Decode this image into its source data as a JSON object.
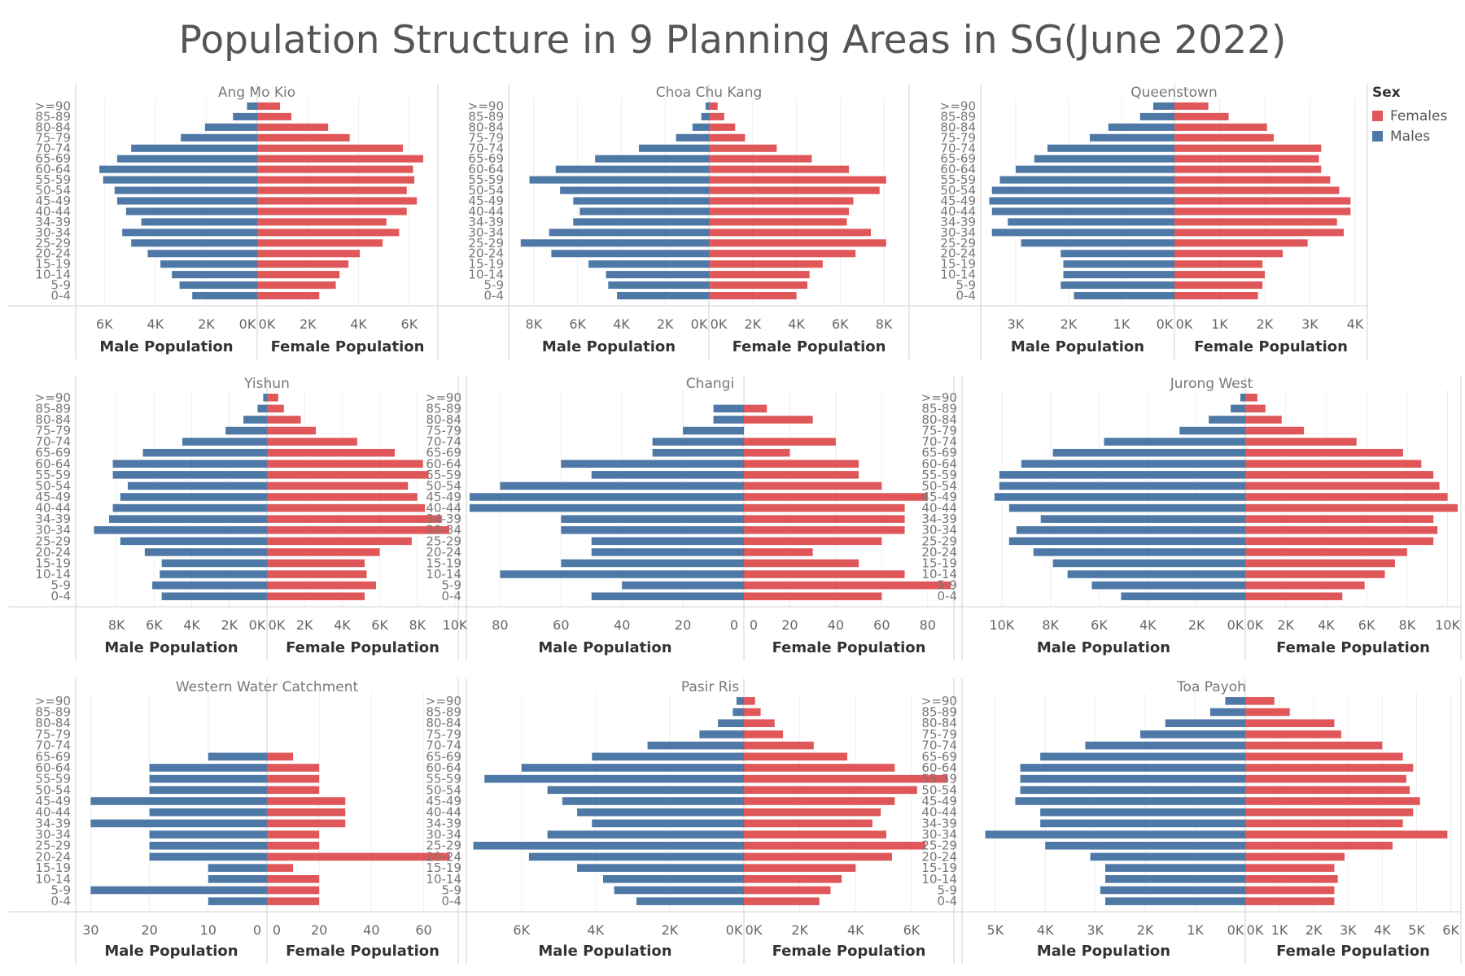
{
  "title": "Population Structure in 9 Planning Areas in SG(June 2022)",
  "legend": {
    "title": "Sex",
    "items": [
      {
        "label": "Females",
        "color": "#e05759"
      },
      {
        "label": "Males",
        "color": "#4e79a7"
      }
    ]
  },
  "chart_data": [
    {
      "type": "bar",
      "orientation": "horizontal-pyramid",
      "panel": "Ang Mo Kio",
      "xlabel_left": "Male Population",
      "xlabel_right": "Female Population",
      "categories": [
        "0-4",
        "5-9",
        "10-14",
        "15-19",
        "20-24",
        "25-29",
        "30-34",
        "34-39",
        "40-44",
        "45-49",
        "50-54",
        "55-59",
        "60-64",
        "65-69",
        "70-74",
        "75-79",
        "80-84",
        "85-89",
        ">=90"
      ],
      "male_ticks": [
        "6K",
        "4K",
        "2K",
        "0K"
      ],
      "female_ticks": [
        "0K",
        "2K",
        "4K",
        "6K"
      ],
      "male_xlim": [
        7000,
        0
      ],
      "female_xlim": [
        0,
        7000
      ],
      "series": [
        {
          "name": "Males",
          "values": [
            2550,
            3050,
            3350,
            3800,
            4300,
            4950,
            5300,
            4550,
            5150,
            5500,
            5600,
            6050,
            6200,
            5500,
            4950,
            3000,
            2050,
            950,
            400
          ]
        },
        {
          "name": "Females",
          "values": [
            2450,
            3100,
            3250,
            3600,
            4050,
            4950,
            5600,
            5100,
            5900,
            6300,
            5900,
            6200,
            6150,
            6550,
            5750,
            3650,
            2800,
            1350,
            900
          ]
        }
      ]
    },
    {
      "type": "bar",
      "orientation": "horizontal-pyramid",
      "panel": "Choa Chu Kang",
      "xlabel_left": "Male Population",
      "xlabel_right": "Female Population",
      "categories": [
        "0-4",
        "5-9",
        "10-14",
        "15-19",
        "20-24",
        "25-29",
        "30-34",
        "34-39",
        "40-44",
        "45-49",
        "50-54",
        "55-59",
        "60-64",
        "65-69",
        "70-74",
        "75-79",
        "80-84",
        "85-89",
        ">=90"
      ],
      "male_ticks": [
        "8K",
        "6K",
        "4K",
        "2K",
        "0K"
      ],
      "female_ticks": [
        "0K",
        "2K",
        "4K",
        "6K",
        "8K"
      ],
      "male_xlim": [
        9000,
        0
      ],
      "female_xlim": [
        0,
        9000
      ],
      "series": [
        {
          "name": "Males",
          "values": [
            4200,
            4600,
            4700,
            5500,
            7200,
            8600,
            7300,
            6200,
            5900,
            6200,
            6800,
            8200,
            7000,
            5200,
            3200,
            1500,
            750,
            350,
            150
          ]
        },
        {
          "name": "Females",
          "values": [
            4000,
            4500,
            4600,
            5200,
            6700,
            8100,
            7400,
            6300,
            6400,
            6600,
            7800,
            8100,
            6400,
            4700,
            3100,
            1650,
            1200,
            700,
            400
          ]
        }
      ]
    },
    {
      "type": "bar",
      "orientation": "horizontal-pyramid",
      "panel": "Queenstown",
      "xlabel_left": "Male Population",
      "xlabel_right": "Female Population",
      "categories": [
        "0-4",
        "5-9",
        "10-14",
        "15-19",
        "20-24",
        "25-29",
        "30-34",
        "34-39",
        "40-44",
        "45-49",
        "50-54",
        "55-59",
        "60-64",
        "65-69",
        "70-74",
        "75-79",
        "80-84",
        "85-89",
        ">=90"
      ],
      "male_ticks": [
        "3K",
        "2K",
        "1K",
        "0K"
      ],
      "female_ticks": [
        "0K",
        "1K",
        "2K",
        "3K",
        "4K"
      ],
      "male_xlim": [
        3600,
        0
      ],
      "female_xlim": [
        0,
        4200
      ],
      "series": [
        {
          "name": "Males",
          "values": [
            1900,
            2150,
            2100,
            2100,
            2150,
            2900,
            3450,
            3150,
            3450,
            3500,
            3450,
            3300,
            3000,
            2650,
            2400,
            1600,
            1250,
            650,
            400
          ]
        },
        {
          "name": "Females",
          "values": [
            1850,
            1950,
            2000,
            1950,
            2400,
            2950,
            3750,
            3600,
            3900,
            3900,
            3650,
            3450,
            3250,
            3200,
            3250,
            2200,
            2050,
            1200,
            750
          ]
        }
      ]
    },
    {
      "type": "bar",
      "orientation": "horizontal-pyramid",
      "panel": "Yishun",
      "xlabel_left": "Male Population",
      "xlabel_right": "Female Population",
      "categories": [
        "0-4",
        "5-9",
        "10-14",
        "15-19",
        "20-24",
        "25-29",
        "30-34",
        "34-39",
        "40-44",
        "45-49",
        "50-54",
        "55-59",
        "60-64",
        "65-69",
        "70-74",
        "75-79",
        "80-84",
        "85-89",
        ">=90"
      ],
      "male_ticks": [
        "8K",
        "6K",
        "4K",
        "2K",
        "0K"
      ],
      "female_ticks": [
        "0K",
        "2K",
        "4K",
        "6K",
        "8K",
        "10K"
      ],
      "male_xlim": [
        10000,
        0
      ],
      "female_xlim": [
        0,
        10000
      ],
      "series": [
        {
          "name": "Males",
          "values": [
            5600,
            6100,
            5700,
            5600,
            6500,
            7800,
            9200,
            8400,
            8200,
            7800,
            7400,
            8200,
            8200,
            6600,
            4500,
            2200,
            1250,
            500,
            200
          ]
        },
        {
          "name": "Females",
          "values": [
            5200,
            5800,
            5300,
            5200,
            6000,
            7700,
            9700,
            9300,
            8400,
            8000,
            7500,
            8600,
            8300,
            6800,
            4800,
            2600,
            1800,
            900,
            600
          ]
        }
      ]
    },
    {
      "type": "bar",
      "orientation": "horizontal-pyramid",
      "panel": "Changi",
      "xlabel_left": "Male Population",
      "xlabel_right": "Female Population",
      "categories": [
        "0-4",
        "5-9",
        "10-14",
        "15-19",
        "20-24",
        "25-29",
        "30-34",
        "34-39",
        "40-44",
        "45-49",
        "50-54",
        "55-59",
        "60-64",
        "65-69",
        "70-74",
        "75-79",
        "80-84",
        "85-89",
        ">=90"
      ],
      "male_ticks": [
        "80",
        "60",
        "40",
        "20",
        "0"
      ],
      "female_ticks": [
        "0",
        "20",
        "40",
        "60",
        "80"
      ],
      "male_xlim": [
        90,
        0
      ],
      "female_xlim": [
        0,
        90
      ],
      "series": [
        {
          "name": "Males",
          "values": [
            50,
            40,
            80,
            60,
            50,
            50,
            60,
            60,
            90,
            90,
            80,
            50,
            60,
            30,
            30,
            20,
            10,
            10,
            0
          ]
        },
        {
          "name": "Females",
          "values": [
            60,
            90,
            70,
            50,
            30,
            60,
            70,
            70,
            70,
            80,
            60,
            50,
            50,
            20,
            40,
            0,
            30,
            10,
            0
          ]
        }
      ]
    },
    {
      "type": "bar",
      "orientation": "horizontal-pyramid",
      "panel": "Jurong West",
      "xlabel_left": "Male Population",
      "xlabel_right": "Female Population",
      "categories": [
        "0-4",
        "5-9",
        "10-14",
        "15-19",
        "20-24",
        "25-29",
        "30-34",
        "34-39",
        "40-44",
        "45-49",
        "50-54",
        "55-59",
        "60-64",
        "65-69",
        "70-74",
        "75-79",
        "80-84",
        "85-89",
        ">=90"
      ],
      "male_ticks": [
        "10K",
        "8K",
        "6K",
        "4K",
        "2K",
        "0K"
      ],
      "female_ticks": [
        "0K",
        "2K",
        "4K",
        "6K",
        "8K",
        "10K"
      ],
      "male_xlim": [
        11500,
        0
      ],
      "female_xlim": [
        0,
        10500
      ],
      "series": [
        {
          "name": "Males",
          "values": [
            5100,
            6300,
            7300,
            7900,
            8700,
            9700,
            9400,
            8400,
            9700,
            10300,
            10100,
            10100,
            9200,
            7900,
            5800,
            2700,
            1500,
            600,
            200
          ]
        },
        {
          "name": "Females",
          "values": [
            4800,
            5900,
            6900,
            7400,
            8000,
            9300,
            9500,
            9300,
            10500,
            10000,
            9600,
            9300,
            8700,
            7800,
            5500,
            2900,
            1800,
            1000,
            600
          ]
        }
      ]
    },
    {
      "type": "bar",
      "orientation": "horizontal-pyramid",
      "panel": "Western Water Catchment",
      "xlabel_left": "Male Population",
      "xlabel_right": "Female Population",
      "categories": [
        "0-4",
        "5-9",
        "10-14",
        "15-19",
        "20-24",
        "25-29",
        "30-34",
        "34-39",
        "40-44",
        "45-49",
        "50-54",
        "55-59",
        "60-64",
        "65-69",
        "70-74",
        "75-79",
        "80-84",
        "85-89",
        ">=90"
      ],
      "male_ticks": [
        "30",
        "20",
        "10",
        "0"
      ],
      "female_ticks": [
        "0",
        "20",
        "40",
        "60"
      ],
      "male_xlim": [
        32,
        0
      ],
      "female_xlim": [
        0,
        72
      ],
      "series": [
        {
          "name": "Males",
          "values": [
            10,
            30,
            10,
            10,
            20,
            20,
            20,
            30,
            20,
            30,
            20,
            20,
            20,
            10,
            0,
            0,
            0,
            0,
            0
          ]
        },
        {
          "name": "Females",
          "values": [
            20,
            20,
            20,
            10,
            70,
            20,
            20,
            30,
            30,
            30,
            20,
            20,
            20,
            10,
            0,
            0,
            0,
            0,
            0
          ]
        }
      ]
    },
    {
      "type": "bar",
      "orientation": "horizontal-pyramid",
      "panel": "Pasir Ris",
      "xlabel_left": "Male Population",
      "xlabel_right": "Female Population",
      "categories": [
        "0-4",
        "5-9",
        "10-14",
        "15-19",
        "20-24",
        "25-29",
        "30-34",
        "34-39",
        "40-44",
        "45-49",
        "50-54",
        "55-59",
        "60-64",
        "65-69",
        "70-74",
        "75-79",
        "80-84",
        "85-89",
        ">=90"
      ],
      "male_ticks": [
        "6K",
        "4K",
        "2K",
        "0K"
      ],
      "female_ticks": [
        "0K",
        "2K",
        "4K",
        "6K"
      ],
      "male_xlim": [
        7400,
        0
      ],
      "female_xlim": [
        0,
        7400
      ],
      "series": [
        {
          "name": "Males",
          "values": [
            2900,
            3500,
            3800,
            4500,
            5800,
            7300,
            5300,
            4100,
            4500,
            4900,
            5300,
            7000,
            6000,
            4100,
            2600,
            1200,
            700,
            300,
            200
          ]
        },
        {
          "name": "Females",
          "values": [
            2700,
            3100,
            3500,
            4000,
            5300,
            6500,
            5100,
            4600,
            4900,
            5400,
            6200,
            7300,
            5400,
            3700,
            2500,
            1400,
            1100,
            600,
            400
          ]
        }
      ]
    },
    {
      "type": "bar",
      "orientation": "horizontal-pyramid",
      "panel": "Toa Payoh",
      "xlabel_left": "Male Population",
      "xlabel_right": "Female Population",
      "categories": [
        "0-4",
        "5-9",
        "10-14",
        "15-19",
        "20-24",
        "25-29",
        "30-34",
        "34-39",
        "40-44",
        "45-49",
        "50-54",
        "55-59",
        "60-64",
        "65-69",
        "70-74",
        "75-79",
        "80-84",
        "85-89",
        ">=90"
      ],
      "male_ticks": [
        "5K",
        "4K",
        "3K",
        "2K",
        "1K",
        "0K"
      ],
      "female_ticks": [
        "0K",
        "1K",
        "2K",
        "3K",
        "4K",
        "5K",
        "6K"
      ],
      "male_xlim": [
        5600,
        0
      ],
      "female_xlim": [
        0,
        6200
      ],
      "series": [
        {
          "name": "Males",
          "values": [
            2800,
            2900,
            2800,
            2800,
            3100,
            4000,
            5200,
            4100,
            4100,
            4600,
            4500,
            4500,
            4500,
            4100,
            3200,
            2100,
            1600,
            700,
            400
          ]
        },
        {
          "name": "Females",
          "values": [
            2600,
            2600,
            2700,
            2600,
            2900,
            4300,
            5900,
            4600,
            4900,
            5100,
            4800,
            4700,
            4900,
            4600,
            4000,
            2800,
            2600,
            1300,
            850
          ]
        }
      ]
    }
  ]
}
